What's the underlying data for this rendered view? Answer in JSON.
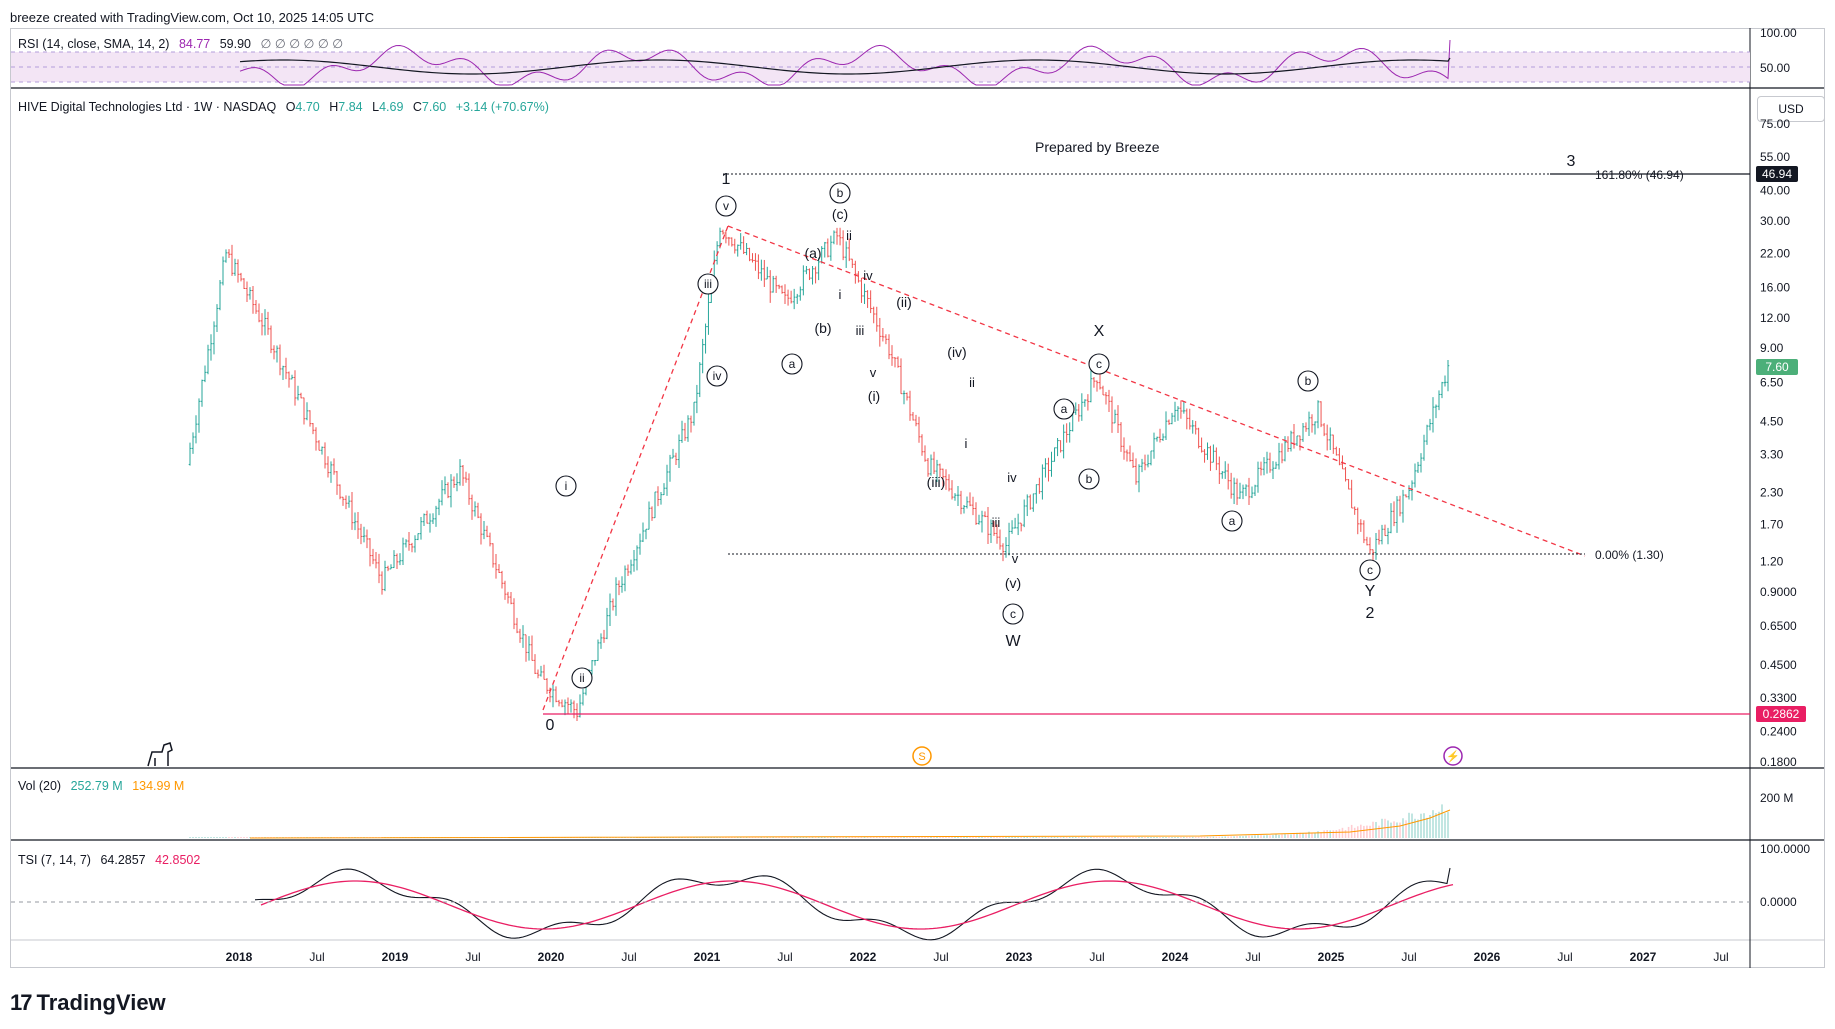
{
  "header": {
    "author_line": "breeze created with TradingView.com, Oct 10, 2025 14:05 UTC"
  },
  "rsi": {
    "title": "RSI (14, close, SMA, 14, 2)",
    "value": "84.77",
    "sma": "59.90",
    "placeholders": "∅ ∅ ∅ ∅ ∅ ∅",
    "scale_labels": [
      "100.00",
      "50.00"
    ]
  },
  "main": {
    "symbol_line": "HIVE Digital Technologies Ltd · 1W · NASDAQ",
    "o_label": "O",
    "o": "4.70",
    "h_label": "H",
    "h": "7.84",
    "l_label": "L",
    "l": "4.69",
    "c_label": "C",
    "c": "7.60",
    "change": "+3.14 (+70.67%)",
    "currency": "USD",
    "prepared_by": "Prepared by Breeze",
    "price_scale": [
      "75.00",
      "55.00",
      "40.00",
      "30.00",
      "22.00",
      "16.00",
      "12.00",
      "9.00",
      "6.50",
      "4.50",
      "3.30",
      "2.30",
      "1.70",
      "1.20",
      "0.9000",
      "0.6500",
      "0.4500",
      "0.3300",
      "0.2400",
      "0.1800"
    ],
    "last_price_tag": "7.60",
    "target_tag": "46.94",
    "low_tag": "0.2862",
    "fib_target_text": "161.80% (46.94)",
    "fib_base_text": "0.00% (1.30)",
    "wave_labels": {
      "w0": "0",
      "w1": "1",
      "w2": "2",
      "w3": "3",
      "W": "W",
      "X": "X",
      "Y": "Y",
      "circ_i": "i",
      "circ_ii": "ii",
      "circ_iii": "iii",
      "circ_iv": "iv",
      "circ_v": "v",
      "circ_a": "a",
      "circ_b": "b",
      "circ_c": "c",
      "p_a": "(a)",
      "p_b": "(b)",
      "p_c": "(c)",
      "p_i": "(i)",
      "p_ii": "(ii)",
      "p_iii": "(iii)",
      "p_iv": "(iv)",
      "p_v": "(v)",
      "s_i": "i",
      "s_ii": "ii",
      "s_iii": "iii",
      "s_iv": "iv",
      "s_v": "v"
    }
  },
  "volume": {
    "title": "Vol (20)",
    "value": "252.79 M",
    "ma": "134.99 M",
    "scale_label": "200 M"
  },
  "tsi": {
    "title": "TSI (7, 14, 7)",
    "value": "64.2857",
    "signal": "42.8502",
    "scale_labels": [
      "100.0000",
      "0.0000"
    ]
  },
  "time_axis": [
    "2018",
    "Jul",
    "2019",
    "Jul",
    "2020",
    "Jul",
    "2021",
    "Jul",
    "2022",
    "Jul",
    "2023",
    "Jul",
    "2024",
    "Jul",
    "2025",
    "Jul",
    "2026",
    "Jul",
    "2027",
    "Jul"
  ],
  "branding": {
    "logo_text": "TradingView"
  },
  "colors": {
    "up": "#26a69a",
    "down": "#ef5350",
    "rsi": "#9c27b0",
    "rsi_band": "#f3e5f5",
    "trendline": "#f23645",
    "low_line": "#e91e63",
    "vol_ma": "#ff9800",
    "tsi_signal": "#e91e63",
    "tsi_line": "#131722",
    "last_price_bg": "#4caf79"
  },
  "chart_data": {
    "type": "candlestick-weekly-log",
    "symbol": "HIVE",
    "exchange": "NASDAQ",
    "interval": "1W",
    "y_scale": "log",
    "ylim": [
      0.18,
      75
    ],
    "x_range": [
      "2017-09",
      "2027-10"
    ],
    "ohlc_last": {
      "open": 4.7,
      "high": 7.84,
      "low": 4.69,
      "close": 7.6,
      "change": 3.14,
      "change_pct": 70.67
    },
    "approx_close_path": [
      {
        "date": "2017-09",
        "price": 3.0
      },
      {
        "date": "2017-12",
        "price": 22.0
      },
      {
        "date": "2018-03",
        "price": 11.0
      },
      {
        "date": "2018-06",
        "price": 5.0
      },
      {
        "date": "2018-12",
        "price": 1.0
      },
      {
        "date": "2019-06",
        "price": 2.8
      },
      {
        "date": "2019-12",
        "price": 0.4
      },
      {
        "date": "2020-03",
        "price": 0.29
      },
      {
        "date": "2020-06",
        "price": 0.9
      },
      {
        "date": "2020-12",
        "price": 5.0
      },
      {
        "date": "2021-02",
        "price": 29.0
      },
      {
        "date": "2021-07",
        "price": 14.0
      },
      {
        "date": "2021-11",
        "price": 26.0
      },
      {
        "date": "2022-03",
        "price": 9.0
      },
      {
        "date": "2022-06",
        "price": 3.0
      },
      {
        "date": "2022-12",
        "price": 1.4
      },
      {
        "date": "2023-07",
        "price": 7.0
      },
      {
        "date": "2023-10",
        "price": 2.6
      },
      {
        "date": "2024-01",
        "price": 5.3
      },
      {
        "date": "2024-06",
        "price": 2.2
      },
      {
        "date": "2024-12",
        "price": 5.0
      },
      {
        "date": "2025-04",
        "price": 1.3
      },
      {
        "date": "2025-07",
        "price": 2.4
      },
      {
        "date": "2025-10",
        "price": 7.6
      }
    ],
    "annotations": {
      "fib_target": {
        "label": "161.80% (46.94)",
        "price": 46.94
      },
      "fib_base": {
        "label": "0.00% (1.30)",
        "price": 1.3
      },
      "all_time_low_line": 0.2862,
      "prepared_by": "Prepared by Breeze"
    },
    "rsi": {
      "value": 84.77,
      "sma": 59.9,
      "ylim": [
        0,
        100
      ]
    },
    "volume": {
      "value_m": 252.79,
      "ma_m": 134.99
    },
    "tsi": {
      "value": 64.2857,
      "signal": 42.8502
    }
  }
}
